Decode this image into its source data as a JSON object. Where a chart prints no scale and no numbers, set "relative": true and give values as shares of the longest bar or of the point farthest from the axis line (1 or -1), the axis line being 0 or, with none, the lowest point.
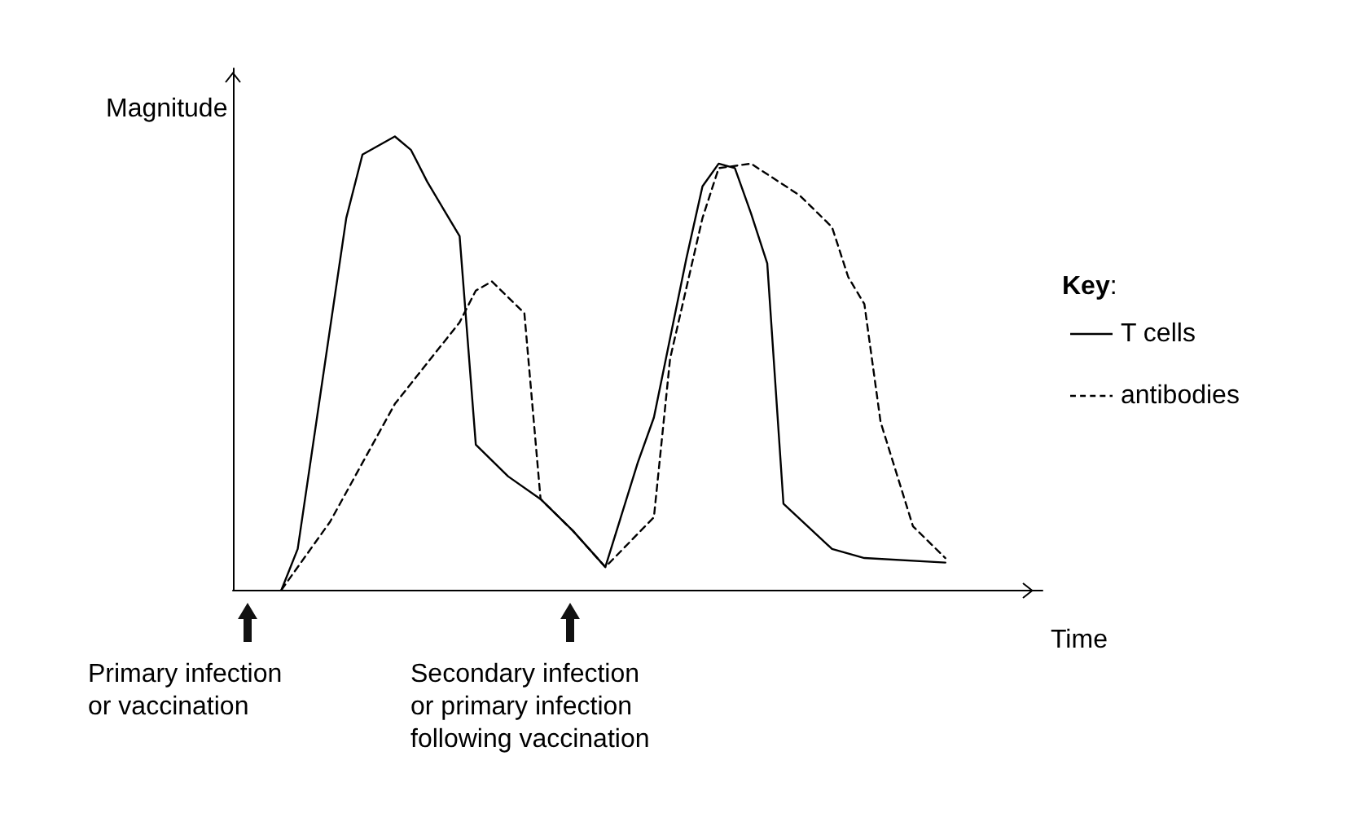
{
  "chart_data": {
    "type": "line",
    "relative": true,
    "ylabel": "Magnitude",
    "xlabel": "Time",
    "legend_title": "Key:",
    "legend": "right",
    "grid": false,
    "marker": "none",
    "categories": [
      null,
      null,
      null,
      null,
      null,
      null,
      null,
      null,
      null,
      null,
      null,
      null,
      null,
      null,
      null,
      null,
      null,
      null,
      null,
      null,
      null,
      null,
      null,
      null,
      null,
      null,
      null,
      null,
      null,
      null,
      null,
      null,
      null,
      null,
      null,
      null,
      null,
      null,
      null,
      null,
      null,
      null,
      null,
      null,
      null,
      null,
      null,
      null,
      null,
      null,
      null
    ],
    "series": [
      {
        "name": "T cells",
        "color": "#000000",
        "line_style": "solid",
        "values": [
          null,
          null,
          null,
          0,
          0.09,
          null,
          null,
          0.82,
          0.96,
          null,
          1,
          0.97,
          0.9,
          0.84,
          0.78,
          0.32,
          null,
          0.25,
          null,
          0.2,
          null,
          0.13,
          null,
          0.05,
          null,
          0.28,
          0.38,
          null,
          0.73,
          0.89,
          0.94,
          0.93,
          0.83,
          0.72,
          0.19,
          null,
          null,
          0.09,
          null,
          0.07,
          null,
          null,
          null,
          null,
          0.06,
          null,
          null,
          null,
          null,
          null,
          null
        ]
      },
      {
        "name": "antibodies",
        "color": "#000000",
        "line_style": "dashed",
        "values": [
          null,
          null,
          null,
          0,
          null,
          null,
          0.15,
          null,
          null,
          null,
          0.41,
          null,
          null,
          null,
          0.59,
          0.66,
          0.68,
          null,
          0.61,
          0.2,
          null,
          0.13,
          null,
          0.05,
          null,
          null,
          0.16,
          0.51,
          null,
          0.82,
          0.93,
          null,
          0.94,
          null,
          null,
          0.87,
          null,
          0.8,
          0.69,
          0.63,
          0.37,
          null,
          0.14,
          null,
          0.07,
          null,
          null,
          null,
          null,
          null,
          null
        ]
      }
    ],
    "annotations": [
      "Primary infection\nor vaccination",
      "Secondary infection\nor primary infection\nfollowing vaccination"
    ]
  }
}
